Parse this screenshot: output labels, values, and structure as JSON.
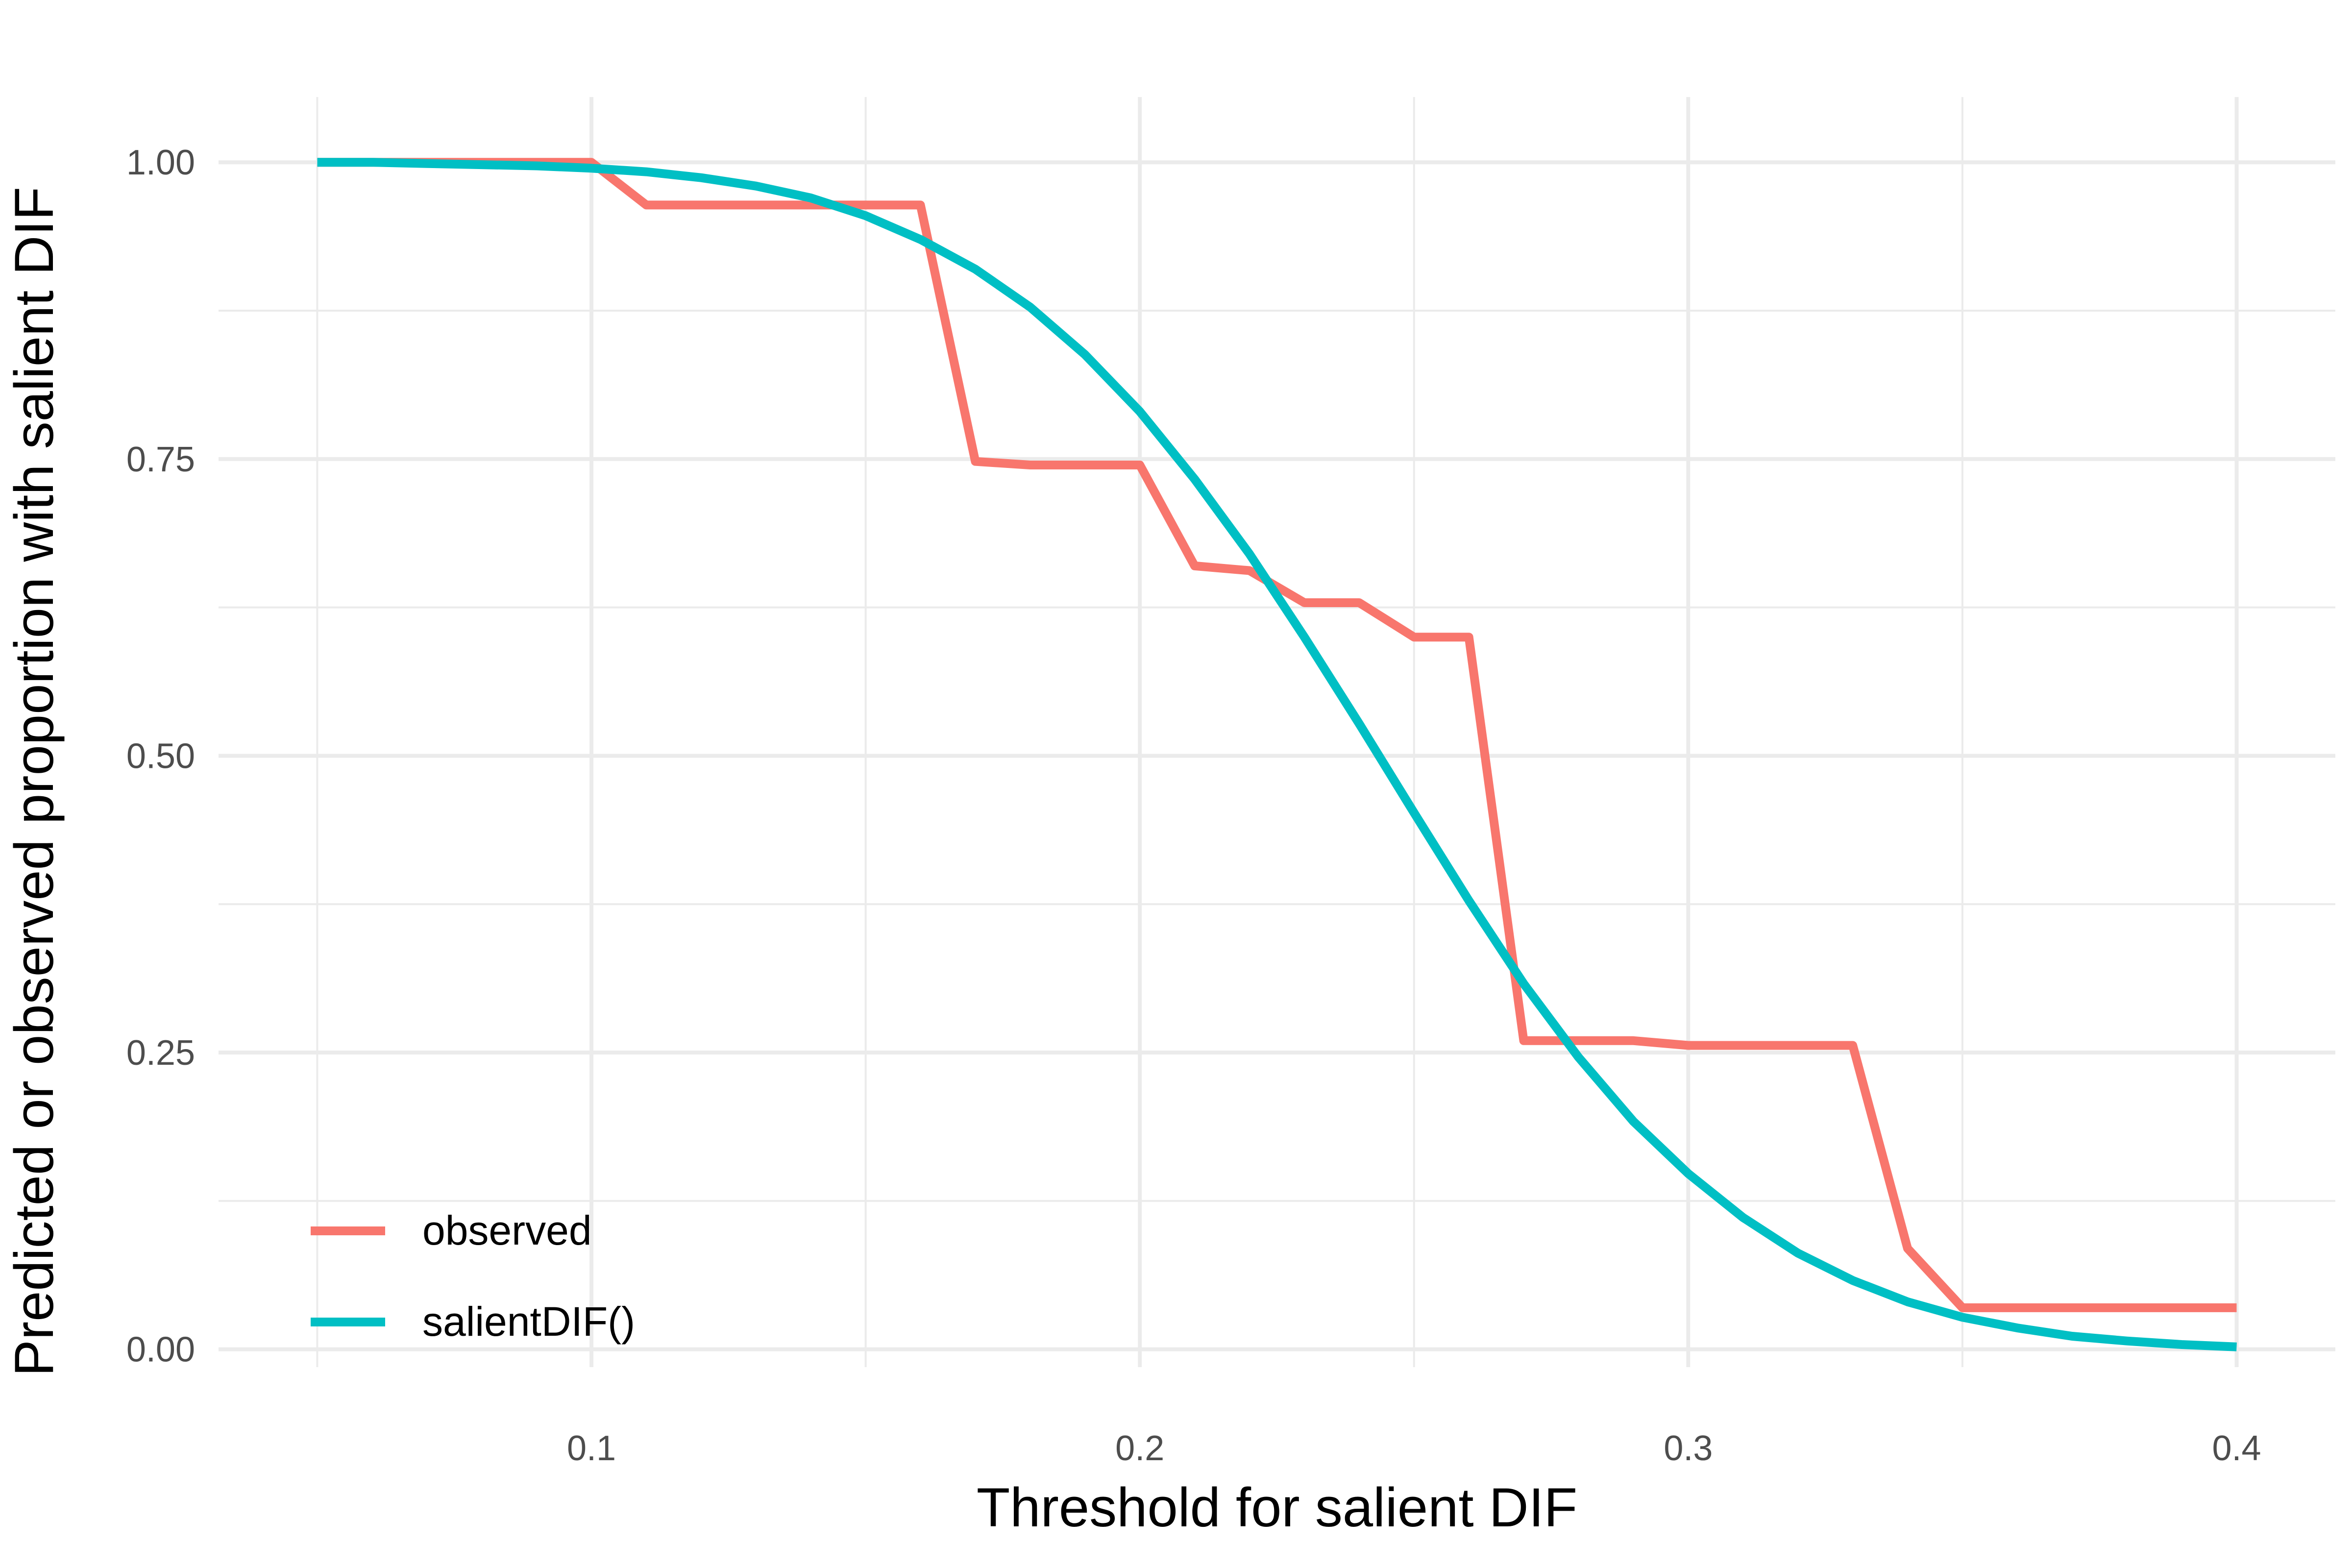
{
  "chart_data": {
    "type": "line",
    "xlabel": "Threshold for salient DIF",
    "ylabel": "Predicted or observed proportion with salient DIF",
    "xlim": [
      0.032,
      0.418
    ],
    "ylim": [
      -0.015,
      1.055
    ],
    "x_ticks": [
      0.1,
      0.2,
      0.3,
      0.4
    ],
    "x_tick_labels": [
      "0.1",
      "0.2",
      "0.3",
      "0.4"
    ],
    "x_minor_ticks": [
      0.05,
      0.15,
      0.25,
      0.35
    ],
    "y_ticks": [
      0,
      0.25,
      0.5,
      0.75,
      1.0
    ],
    "y_tick_labels": [
      "0.00",
      "0.25",
      "0.50",
      "0.75",
      "1.00"
    ],
    "y_minor_ticks": [
      0.125,
      0.375,
      0.625,
      0.875
    ],
    "grid": true,
    "legend_position": "bottom-left",
    "series": [
      {
        "name": "observed",
        "color": "#F8766D",
        "x": [
          0.05,
          0.06,
          0.07,
          0.08,
          0.09,
          0.1,
          0.11,
          0.12,
          0.13,
          0.14,
          0.15,
          0.16,
          0.17,
          0.18,
          0.19,
          0.2,
          0.21,
          0.22,
          0.23,
          0.24,
          0.25,
          0.26,
          0.27,
          0.28,
          0.29,
          0.3,
          0.31,
          0.32,
          0.33,
          0.34,
          0.35,
          0.36,
          0.37,
          0.38,
          0.39,
          0.4
        ],
        "y": [
          1.0,
          1.0,
          1.0,
          1.0,
          1.0,
          1.0,
          0.964,
          0.964,
          0.964,
          0.964,
          0.964,
          0.964,
          0.748,
          0.745,
          0.745,
          0.745,
          0.66,
          0.656,
          0.629,
          0.629,
          0.6,
          0.6,
          0.26,
          0.26,
          0.26,
          0.256,
          0.256,
          0.256,
          0.256,
          0.085,
          0.035,
          0.035,
          0.035,
          0.035,
          0.035,
          0.035
        ]
      },
      {
        "name": "salientDIF()",
        "color": "#00BFC4",
        "x": [
          0.05,
          0.06,
          0.07,
          0.08,
          0.09,
          0.1,
          0.11,
          0.12,
          0.13,
          0.14,
          0.15,
          0.16,
          0.17,
          0.18,
          0.19,
          0.2,
          0.21,
          0.22,
          0.23,
          0.24,
          0.25,
          0.26,
          0.27,
          0.28,
          0.29,
          0.3,
          0.31,
          0.32,
          0.33,
          0.34,
          0.35,
          0.36,
          0.37,
          0.38,
          0.39,
          0.4
        ],
        "y": [
          1.0,
          1.0,
          0.999,
          0.998,
          0.997,
          0.995,
          0.992,
          0.987,
          0.98,
          0.97,
          0.955,
          0.935,
          0.91,
          0.878,
          0.838,
          0.79,
          0.733,
          0.67,
          0.6,
          0.527,
          0.452,
          0.378,
          0.308,
          0.246,
          0.192,
          0.148,
          0.111,
          0.081,
          0.058,
          0.04,
          0.027,
          0.018,
          0.011,
          0.007,
          0.004,
          0.002
        ]
      }
    ]
  }
}
